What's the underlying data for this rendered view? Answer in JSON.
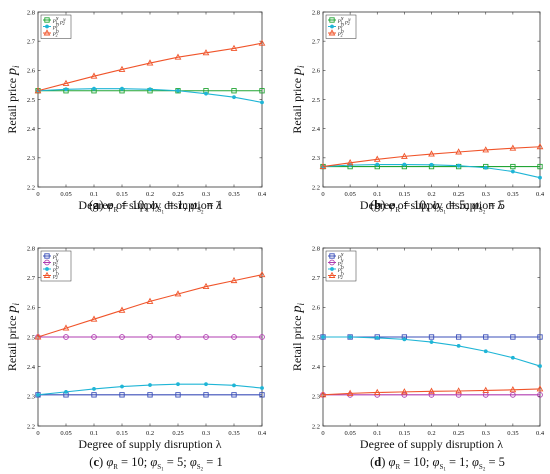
{
  "chart_data": [
    {
      "type": "line",
      "caption": "(a) φR = 10; φS1 = 1; φS2 = 1",
      "xlabel": "Degree of supply disruption λ",
      "ylabel": "Retail price pi",
      "x": [
        0,
        0.05,
        0.1,
        0.15,
        0.2,
        0.25,
        0.3,
        0.35,
        0.4
      ],
      "ylim": [
        2.2,
        2.8
      ],
      "yticks": [
        "2.2",
        "2.3",
        "2.4",
        "2.5",
        "2.6",
        "2.7",
        "2.8"
      ],
      "xticks": [
        "0",
        "0.05",
        "0.1",
        "0.15",
        "0.2",
        "0.25",
        "0.3",
        "0.35",
        "0.4"
      ],
      "legend_position": "top-left",
      "series": [
        {
          "name": "p1N, p2N",
          "color": "#22a535",
          "marker": "square",
          "values": [
            2.53,
            2.53,
            2.53,
            2.53,
            2.53,
            2.53,
            2.53,
            2.53,
            2.53
          ]
        },
        {
          "name": "p1D",
          "color": "#1fb5d6",
          "marker": "star",
          "values": [
            2.53,
            2.535,
            2.537,
            2.537,
            2.535,
            2.53,
            2.52,
            2.508,
            2.49
          ]
        },
        {
          "name": "p2D",
          "color": "#f0542a",
          "marker": "triangle",
          "values": [
            2.53,
            2.555,
            2.58,
            2.603,
            2.625,
            2.645,
            2.66,
            2.675,
            2.693
          ]
        }
      ]
    },
    {
      "type": "line",
      "caption": "(b) φR = 10; φS1 = 5; φS2 = 5",
      "xlabel": "Degree of supply disruption λ",
      "ylabel": "Retail price pi",
      "x": [
        0,
        0.05,
        0.1,
        0.15,
        0.2,
        0.25,
        0.3,
        0.35,
        0.4
      ],
      "ylim": [
        2.2,
        2.8
      ],
      "yticks": [
        "2.2",
        "2.3",
        "2.4",
        "2.5",
        "2.6",
        "2.7",
        "2.8"
      ],
      "xticks": [
        "0",
        "0.05",
        "0.1",
        "0.15",
        "0.2",
        "0.25",
        "0.3",
        "0.35",
        "0.4"
      ],
      "legend_position": "top-left",
      "series": [
        {
          "name": "p1N, p2N",
          "color": "#22a535",
          "marker": "square",
          "values": [
            2.27,
            2.27,
            2.27,
            2.27,
            2.27,
            2.27,
            2.27,
            2.27,
            2.27
          ]
        },
        {
          "name": "p1D",
          "color": "#1fb5d6",
          "marker": "star",
          "values": [
            2.27,
            2.275,
            2.277,
            2.277,
            2.276,
            2.273,
            2.266,
            2.253,
            2.232
          ]
        },
        {
          "name": "p2D",
          "color": "#f0542a",
          "marker": "triangle",
          "values": [
            2.27,
            2.283,
            2.295,
            2.305,
            2.313,
            2.32,
            2.327,
            2.333,
            2.338
          ]
        }
      ]
    },
    {
      "type": "line",
      "caption": "(c) φR = 10; φS1 = 5; φS2 = 1",
      "xlabel": "Degree of supply disruption λ",
      "ylabel": "Retail price pi",
      "x": [
        0,
        0.05,
        0.1,
        0.15,
        0.2,
        0.25,
        0.3,
        0.35,
        0.4
      ],
      "ylim": [
        2.2,
        2.8
      ],
      "yticks": [
        "2.2",
        "2.3",
        "2.4",
        "2.5",
        "2.6",
        "2.7",
        "2.8"
      ],
      "xticks": [
        "0",
        "0.05",
        "0.1",
        "0.15",
        "0.2",
        "0.25",
        "0.3",
        "0.35",
        "0.4"
      ],
      "legend_position": "top-left",
      "series": [
        {
          "name": "p1N",
          "color": "#3b4fb8",
          "marker": "square",
          "values": [
            2.305,
            2.305,
            2.305,
            2.305,
            2.305,
            2.305,
            2.305,
            2.305,
            2.305
          ]
        },
        {
          "name": "p2N",
          "color": "#b03cb0",
          "marker": "circle",
          "values": [
            2.5,
            2.5,
            2.5,
            2.5,
            2.5,
            2.5,
            2.5,
            2.5,
            2.5
          ]
        },
        {
          "name": "p1D",
          "color": "#1fb5d6",
          "marker": "star",
          "values": [
            2.305,
            2.315,
            2.325,
            2.333,
            2.338,
            2.341,
            2.341,
            2.337,
            2.328
          ]
        },
        {
          "name": "p2D",
          "color": "#f0542a",
          "marker": "triangle",
          "values": [
            2.5,
            2.53,
            2.56,
            2.59,
            2.62,
            2.645,
            2.67,
            2.69,
            2.71
          ]
        }
      ]
    },
    {
      "type": "line",
      "caption": "(d) φR = 10; φS1 = 1; φS2 = 5",
      "xlabel": "Degree of supply disruption λ",
      "ylabel": "Retail price pi",
      "x": [
        0,
        0.05,
        0.1,
        0.15,
        0.2,
        0.25,
        0.3,
        0.35,
        0.4
      ],
      "ylim": [
        2.2,
        2.8
      ],
      "yticks": [
        "2.2",
        "2.3",
        "2.4",
        "2.5",
        "2.6",
        "2.7",
        "2.8"
      ],
      "xticks": [
        "0",
        "0.05",
        "0.1",
        "0.15",
        "0.2",
        "0.25",
        "0.3",
        "0.35",
        "0.4"
      ],
      "legend_position": "top-left",
      "series": [
        {
          "name": "p1N",
          "color": "#3b4fb8",
          "marker": "square",
          "values": [
            2.5,
            2.5,
            2.5,
            2.5,
            2.5,
            2.5,
            2.5,
            2.5,
            2.5
          ]
        },
        {
          "name": "p2N",
          "color": "#b03cb0",
          "marker": "circle",
          "values": [
            2.305,
            2.305,
            2.305,
            2.305,
            2.305,
            2.305,
            2.305,
            2.305,
            2.305
          ]
        },
        {
          "name": "p1D",
          "color": "#1fb5d6",
          "marker": "star",
          "values": [
            2.5,
            2.5,
            2.497,
            2.492,
            2.483,
            2.47,
            2.452,
            2.43,
            2.402
          ]
        },
        {
          "name": "p2D",
          "color": "#f0542a",
          "marker": "triangle",
          "values": [
            2.305,
            2.31,
            2.313,
            2.315,
            2.317,
            2.318,
            2.32,
            2.322,
            2.325
          ]
        }
      ]
    }
  ]
}
